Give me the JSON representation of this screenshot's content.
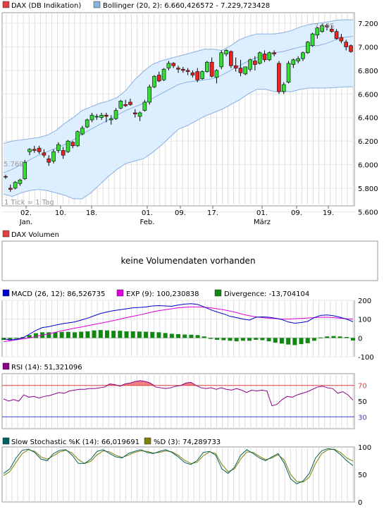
{
  "price_panel": {
    "legend": [
      {
        "label": "DAX (DB Indikation)",
        "color": "#e04040"
      },
      {
        "label": "Bollinger (20, 2): 6.660,426572 - 7.229,723428",
        "color": "#8ab0e0"
      }
    ],
    "y_ticks": [
      "7.200",
      "7.000",
      "6.800",
      "6.600",
      "6.400",
      "6.200",
      "6.000",
      "5.800",
      "5.600"
    ],
    "annotation_high": "7.195",
    "annotation_low": "5.769",
    "tick_note": "1 Tick = 1 Tag",
    "x_ticks": [
      {
        "label": "02.",
        "sub": "Jan."
      },
      {
        "label": "10.",
        "sub": ""
      },
      {
        "label": "18.",
        "sub": ""
      },
      {
        "label": "01.",
        "sub": "Feb."
      },
      {
        "label": "09.",
        "sub": ""
      },
      {
        "label": "17.",
        "sub": ""
      },
      {
        "label": "01.",
        "sub": "März"
      },
      {
        "label": "09.",
        "sub": ""
      },
      {
        "label": "19.",
        "sub": ""
      }
    ]
  },
  "volume_panel": {
    "legend": {
      "label": "DAX Volumen",
      "color": "#e04040"
    },
    "message": "keine Volumendaten vorhanden"
  },
  "macd_panel": {
    "legend": [
      {
        "label": "MACD (26, 12): 86,526735",
        "color": "#0000cc"
      },
      {
        "label": "EXP (9): 100,230838",
        "color": "#dd00dd"
      },
      {
        "label": "Divergence: -13,704104",
        "color": "#118811"
      }
    ],
    "y_ticks": [
      "200",
      "100",
      "0",
      "-100"
    ]
  },
  "rsi_panel": {
    "legend": {
      "label": "RSI (14): 51,321096",
      "color": "#880088"
    },
    "y_ticks": [
      "70",
      "50",
      "30"
    ],
    "overbought_color": "#e04040",
    "oversold_color": "#4040c0"
  },
  "stoch_panel": {
    "legend": [
      {
        "label": "Slow Stochastic %K (14): 66,019691",
        "color": "#006060"
      },
      {
        "label": "%D (3): 74,289733",
        "color": "#808000"
      }
    ],
    "y_ticks": [
      "100",
      "50",
      "0"
    ]
  },
  "chart_data": [
    {
      "type": "candlestick",
      "title": "DAX (DB Indikation)",
      "ylim": [
        5650,
        7290
      ],
      "x_labels": [
        "02. Jan.",
        "10.",
        "18.",
        "01. Feb.",
        "09.",
        "17.",
        "01. März",
        "09.",
        "19."
      ],
      "candles": [
        [
          5900,
          5915,
          5880,
          5895
        ],
        [
          5800,
          5830,
          5769,
          5790
        ],
        [
          5800,
          5860,
          5790,
          5850
        ],
        [
          5840,
          5880,
          5820,
          5870
        ],
        [
          5880,
          6040,
          5870,
          6020
        ],
        [
          6110,
          6140,
          6080,
          6130
        ],
        [
          6130,
          6160,
          6100,
          6120
        ],
        [
          6140,
          6160,
          6090,
          6110
        ],
        [
          6100,
          6130,
          6060,
          6080
        ],
        [
          6050,
          6080,
          5990,
          6020
        ],
        [
          6030,
          6130,
          6010,
          6110
        ],
        [
          6120,
          6190,
          6100,
          6170
        ],
        [
          6120,
          6150,
          6050,
          6080
        ],
        [
          6110,
          6210,
          6100,
          6200
        ],
        [
          6190,
          6200,
          6140,
          6160
        ],
        [
          6160,
          6290,
          6150,
          6280
        ],
        [
          6260,
          6330,
          6250,
          6310
        ],
        [
          6320,
          6390,
          6310,
          6380
        ],
        [
          6380,
          6440,
          6360,
          6420
        ],
        [
          6410,
          6430,
          6380,
          6410
        ],
        [
          6400,
          6440,
          6380,
          6420
        ],
        [
          6420,
          6440,
          6360,
          6410
        ],
        [
          6380,
          6420,
          6340,
          6390
        ],
        [
          6390,
          6480,
          6380,
          6460
        ],
        [
          6480,
          6550,
          6470,
          6540
        ],
        [
          6510,
          6550,
          6490,
          6500
        ],
        [
          6530,
          6560,
          6500,
          6510
        ],
        [
          6440,
          6470,
          6400,
          6430
        ],
        [
          6410,
          6450,
          6370,
          6440
        ],
        [
          6460,
          6550,
          6450,
          6530
        ],
        [
          6530,
          6680,
          6510,
          6660
        ],
        [
          6660,
          6760,
          6650,
          6750
        ],
        [
          6760,
          6790,
          6700,
          6710
        ],
        [
          6720,
          6820,
          6710,
          6810
        ],
        [
          6820,
          6880,
          6800,
          6860
        ],
        [
          6860,
          6870,
          6820,
          6840
        ],
        [
          6820,
          6840,
          6780,
          6810
        ],
        [
          6810,
          6830,
          6780,
          6800
        ],
        [
          6800,
          6820,
          6760,
          6790
        ],
        [
          6780,
          6800,
          6740,
          6760
        ],
        [
          6790,
          6820,
          6700,
          6720
        ],
        [
          6730,
          6800,
          6720,
          6790
        ],
        [
          6790,
          6880,
          6780,
          6870
        ],
        [
          6870,
          6910,
          6740,
          6750
        ],
        [
          6740,
          6810,
          6690,
          6800
        ],
        [
          6830,
          6970,
          6810,
          6950
        ],
        [
          6940,
          6980,
          6920,
          6970
        ],
        [
          6960,
          6970,
          6820,
          6840
        ],
        [
          6840,
          6910,
          6790,
          6820
        ],
        [
          6820,
          6890,
          6750,
          6780
        ],
        [
          6770,
          6830,
          6760,
          6830
        ],
        [
          6810,
          6900,
          6790,
          6890
        ],
        [
          6880,
          6920,
          6800,
          6850
        ],
        [
          6860,
          6960,
          6850,
          6950
        ],
        [
          6940,
          6970,
          6870,
          6890
        ],
        [
          6890,
          6960,
          6880,
          6950
        ],
        [
          6950,
          6970,
          6920,
          6940
        ],
        [
          6860,
          6880,
          6600,
          6620
        ],
        [
          6620,
          6700,
          6600,
          6680
        ],
        [
          6700,
          6880,
          6690,
          6860
        ],
        [
          6850,
          6900,
          6820,
          6890
        ],
        [
          6880,
          6920,
          6860,
          6900
        ],
        [
          6900,
          6960,
          6880,
          6950
        ],
        [
          6950,
          7050,
          6940,
          7040
        ],
        [
          7010,
          7120,
          7000,
          7110
        ],
        [
          7100,
          7170,
          7070,
          7160
        ],
        [
          7130,
          7195,
          7120,
          7180
        ],
        [
          7180,
          7195,
          7140,
          7170
        ],
        [
          7150,
          7180,
          7120,
          7130
        ],
        [
          7130,
          7150,
          7060,
          7070
        ],
        [
          7080,
          7110,
          7030,
          7050
        ],
        [
          7040,
          7060,
          6970,
          7000
        ],
        [
          7010,
          7020,
          6950,
          6960
        ]
      ],
      "bollinger_mid": [
        5930,
        5960,
        6000,
        6040,
        6080,
        6110,
        6140,
        6170,
        6210,
        6260,
        6300,
        6340,
        6380,
        6420,
        6460,
        6490,
        6520,
        6560,
        6600,
        6640,
        6680,
        6700,
        6710,
        6720,
        6730,
        6760,
        6800,
        6840,
        6880,
        6910,
        6930,
        6950,
        6960,
        6980,
        7000,
        7010,
        7010,
        7030,
        7060,
        7080,
        7090
      ],
      "bollinger_upper": [
        6180,
        6200,
        6210,
        6220,
        6230,
        6250,
        6290,
        6350,
        6400,
        6460,
        6490,
        6520,
        6540,
        6570,
        6630,
        6720,
        6790,
        6850,
        6880,
        6900,
        6920,
        6940,
        6960,
        6980,
        6980,
        6970,
        7010,
        7060,
        7090,
        7110,
        7110,
        7110,
        7120,
        7140,
        7170,
        7190,
        7200,
        7210,
        7225,
        7230,
        7229.72
      ],
      "bollinger_lower": [
        5750,
        5730,
        5760,
        5780,
        5790,
        5780,
        5760,
        5740,
        5710,
        5710,
        5760,
        5830,
        5900,
        5960,
        6010,
        6030,
        6050,
        6100,
        6160,
        6230,
        6300,
        6330,
        6370,
        6410,
        6440,
        6470,
        6510,
        6550,
        6600,
        6640,
        6640,
        6620,
        6620,
        6620,
        6640,
        6650,
        6650,
        6650,
        6655,
        6660,
        6660.43
      ]
    },
    {
      "type": "line",
      "title": "MACD (26, 12)",
      "ylim": [
        -100,
        200
      ],
      "series": [
        {
          "name": "MACD",
          "values": [
            -5,
            -10,
            -8,
            0,
            20,
            40,
            55,
            60,
            68,
            75,
            80,
            85,
            95,
            105,
            118,
            130,
            138,
            145,
            150,
            155,
            160,
            162,
            165,
            170,
            172,
            170,
            168,
            175,
            180,
            182,
            178,
            165,
            150,
            138,
            128,
            115,
            108,
            100,
            95,
            110,
            112,
            110,
            105,
            98,
            85,
            78,
            82,
            88,
            108,
            120,
            122,
            118,
            110,
            100,
            86.53
          ]
        },
        {
          "name": "EXP",
          "values": [
            -20,
            -15,
            -10,
            -5,
            0,
            8,
            15,
            22,
            30,
            38,
            45,
            52,
            58,
            65,
            72,
            78,
            85,
            92,
            100,
            108,
            115,
            122,
            130,
            138,
            145,
            150,
            155,
            160,
            163,
            165,
            165,
            163,
            160,
            155,
            150,
            143,
            135,
            125,
            118,
            112,
            108,
            105,
            103,
            100,
            100,
            102,
            104,
            106,
            108,
            110,
            110,
            108,
            105,
            102,
            100.23
          ]
        },
        {
          "name": "Divergence",
          "values": [
            -10,
            -12,
            -5,
            5,
            15,
            25,
            30,
            30,
            30,
            32,
            32,
            30,
            33,
            35,
            40,
            42,
            40,
            38,
            38,
            35,
            35,
            34,
            33,
            32,
            30,
            26,
            22,
            20,
            18,
            17,
            15,
            8,
            -5,
            -10,
            -12,
            -15,
            -18,
            -15,
            -15,
            -10,
            -12,
            -18,
            -25,
            -30,
            -35,
            -38,
            -33,
            -28,
            -15,
            2,
            8,
            10,
            8,
            5,
            -13.7
          ]
        }
      ]
    },
    {
      "type": "line",
      "title": "RSI (14)",
      "ylim": [
        15,
        85
      ],
      "reference_lines": [
        70,
        30
      ],
      "series": [
        {
          "name": "RSI",
          "values": [
            53,
            50,
            52,
            50,
            58,
            55,
            56,
            54,
            56,
            57,
            59,
            61,
            60,
            63,
            64,
            65,
            65,
            66,
            66,
            67,
            68,
            72,
            71,
            69,
            72,
            73,
            75,
            76,
            75,
            73,
            68,
            67,
            66,
            67,
            69,
            70,
            73,
            74,
            70,
            67,
            66,
            67,
            65,
            67,
            65,
            64,
            66,
            64,
            61,
            64,
            63,
            64,
            63,
            44,
            46,
            52,
            56,
            55,
            58,
            60,
            62,
            65,
            68,
            69,
            67,
            66,
            60,
            62,
            58,
            51.3
          ]
        }
      ]
    },
    {
      "type": "line",
      "title": "Slow Stochastic",
      "ylim": [
        0,
        100
      ],
      "series": [
        {
          "name": "%K",
          "values": [
            52,
            60,
            80,
            94,
            96,
            90,
            78,
            75,
            88,
            94,
            95,
            85,
            70,
            70,
            78,
            92,
            95,
            88,
            82,
            80,
            88,
            92,
            95,
            90,
            88,
            92,
            95,
            90,
            82,
            72,
            68,
            75,
            90,
            92,
            85,
            60,
            52,
            63,
            85,
            95,
            88,
            80,
            75,
            82,
            88,
            70,
            42,
            33,
            38,
            52,
            80,
            93,
            97,
            95,
            86,
            75,
            66
          ]
        },
        {
          "name": "%D",
          "values": [
            48,
            55,
            72,
            88,
            95,
            92,
            82,
            78,
            84,
            91,
            94,
            89,
            77,
            70,
            74,
            86,
            93,
            91,
            85,
            81,
            85,
            90,
            93,
            92,
            89,
            90,
            93,
            91,
            85,
            76,
            70,
            72,
            84,
            91,
            88,
            68,
            55,
            60,
            78,
            91,
            90,
            83,
            77,
            80,
            86,
            76,
            50,
            37,
            36,
            45,
            70,
            88,
            95,
            96,
            90,
            80,
            74.3
          ]
        }
      ]
    }
  ]
}
